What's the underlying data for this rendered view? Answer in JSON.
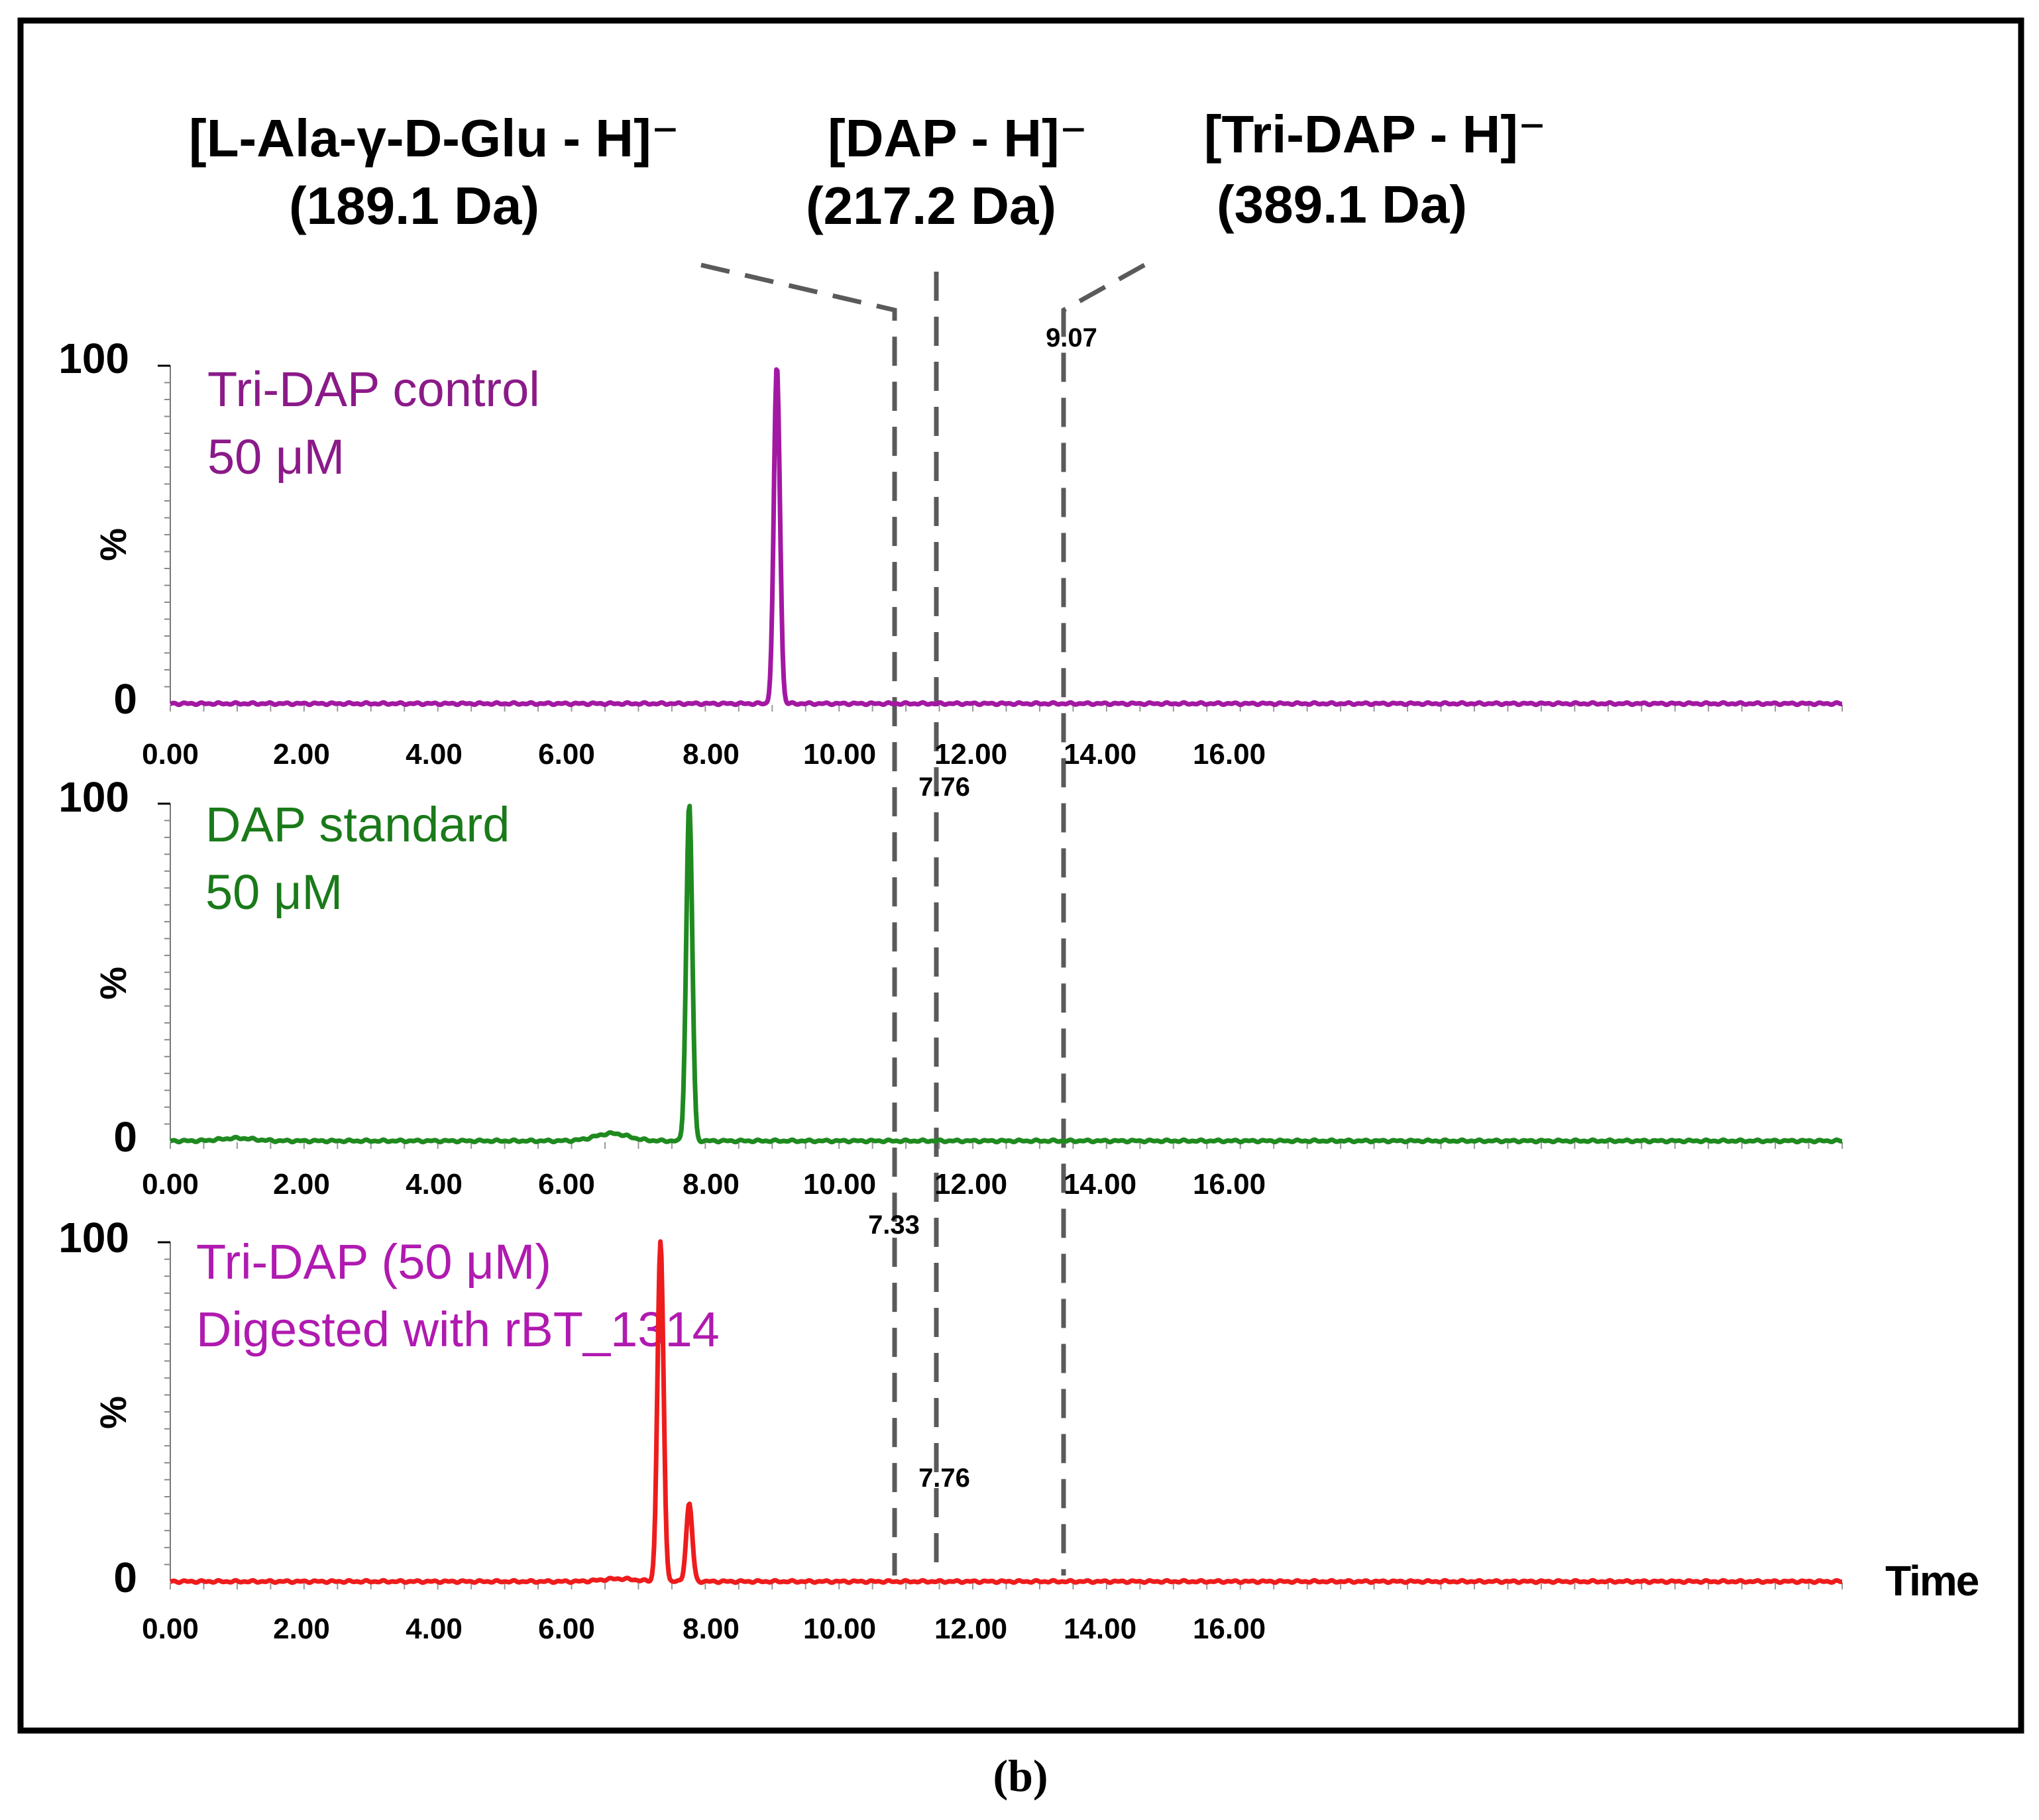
{
  "chart_data": {
    "type": "line",
    "caption": "(b)",
    "xlabel": "Time",
    "x_ticks": [
      "0.00",
      "2.00",
      "4.00",
      "6.00",
      "8.00",
      "10.00",
      "12.00",
      "14.00",
      "16.00"
    ],
    "xlim": [
      0,
      25
    ],
    "ylim": [
      0,
      100
    ],
    "ylabel": "%",
    "y_ticks": [
      "0",
      "100"
    ],
    "annotations": [
      {
        "line1": "[L-Ala-γ-D-Glu - H]⁻",
        "line2": "(189.1 Da)",
        "x": 7.33
      },
      {
        "line1": "[DAP - H]⁻",
        "line2": "(217.2 Da)",
        "x": 7.76
      },
      {
        "line1": "[Tri-DAP - H]⁻",
        "line2": "(389.1 Da)",
        "x": 9.07
      }
    ],
    "panels": [
      {
        "label_lines": [
          "Tri-DAP control",
          "50 μM"
        ],
        "label_color": "#8b1a89",
        "line_color": "#a318a3",
        "peaks": [
          {
            "x": 9.07,
            "y": 100,
            "label": "9.07"
          }
        ],
        "bumps": []
      },
      {
        "label_lines": [
          "DAP standard",
          "50 μM"
        ],
        "label_color": "#1a7a1a",
        "line_color": "#1f8a1f",
        "peaks": [
          {
            "x": 7.76,
            "y": 100,
            "label": "7.76"
          }
        ],
        "bumps": [
          {
            "x": 6.6,
            "y": 2.2
          },
          {
            "x": 1.0,
            "y": 0.8
          }
        ]
      },
      {
        "label_lines": [
          "Tri-DAP (50 μM)",
          "Digested with rBT_1314"
        ],
        "label_color": "#b01ab0",
        "line_color": "#ee1c1c",
        "peaks": [
          {
            "x": 7.33,
            "y": 100,
            "label": "7.33"
          },
          {
            "x": 7.76,
            "y": 23,
            "label": "7.76"
          }
        ],
        "bumps": [
          {
            "x": 6.7,
            "y": 0.8
          }
        ]
      }
    ]
  }
}
